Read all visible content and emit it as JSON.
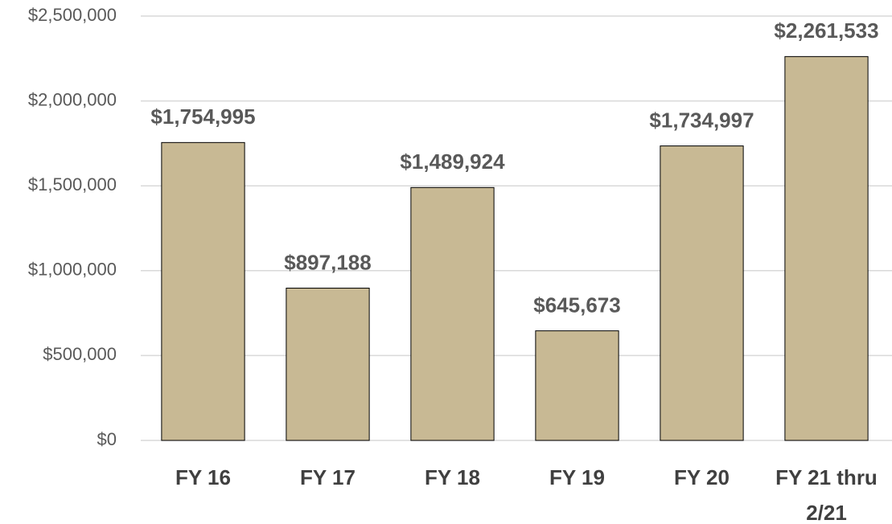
{
  "chart_data": {
    "type": "bar",
    "categories": [
      "FY 16",
      "FY 17",
      "FY 18",
      "FY 19",
      "FY 20",
      "FY 21 thru 2/21"
    ],
    "values": [
      1754995,
      897188,
      1489924,
      645673,
      1734997,
      2261533
    ],
    "value_labels": [
      "$1,754,995",
      "$897,188",
      "$1,489,924",
      "$645,673",
      "$1,734,997",
      "$2,261,533"
    ],
    "color": "#c8b994",
    "ylim": [
      0,
      2500000
    ],
    "yticks": [
      {
        "value": 0,
        "label": "$0"
      },
      {
        "value": 500000,
        "label": "$500,000"
      },
      {
        "value": 1000000,
        "label": "$1,000,000"
      },
      {
        "value": 1500000,
        "label": "$1,500,000"
      },
      {
        "value": 2000000,
        "label": "$2,000,000"
      },
      {
        "value": 2500000,
        "label": "$2,500,000"
      }
    ],
    "grid": true
  }
}
